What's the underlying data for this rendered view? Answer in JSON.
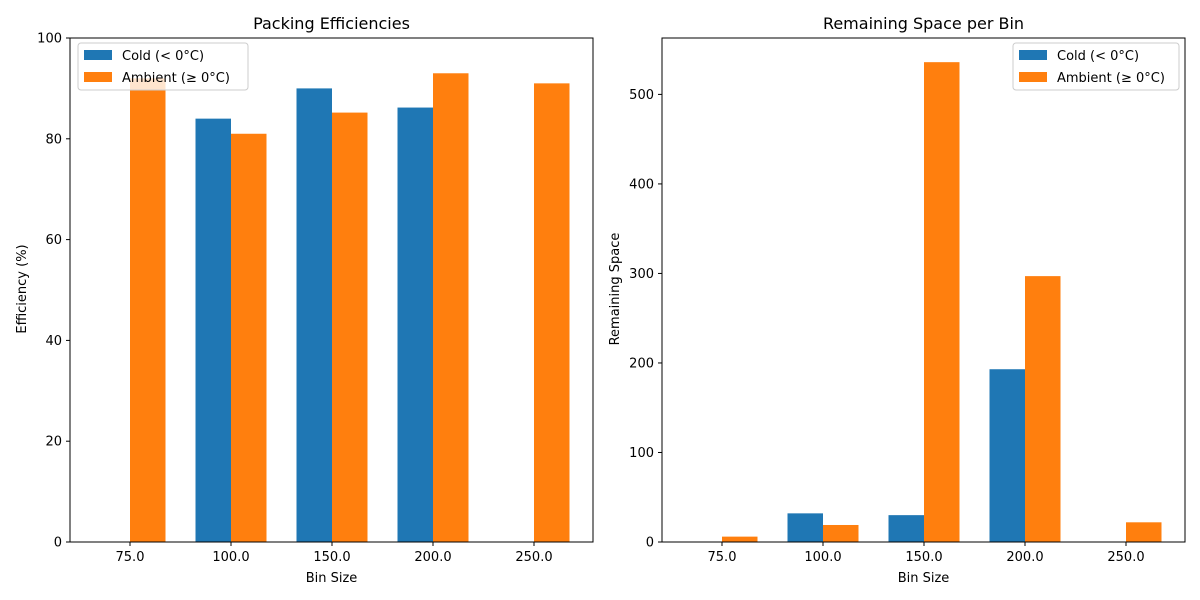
{
  "chart_data": [
    {
      "type": "bar",
      "title": "Packing Efficiencies",
      "xlabel": "Bin Size",
      "ylabel": "Efficiency (%)",
      "categories": [
        "75.0",
        "100.0",
        "150.0",
        "200.0",
        "250.0"
      ],
      "ylim": [
        0,
        100
      ],
      "yticks": [
        0,
        20,
        40,
        60,
        80,
        100
      ],
      "grid": false,
      "legend": "top-left",
      "series": [
        {
          "name": "Cold (< 0°C)",
          "color": "#1f77b4",
          "values": [
            null,
            84.0,
            90.0,
            86.2,
            null
          ]
        },
        {
          "name": "Ambient (≥ 0°C)",
          "color": "#ff7f0e",
          "values": [
            92.0,
            81.0,
            85.2,
            93.0,
            91.0
          ]
        }
      ]
    },
    {
      "type": "bar",
      "title": "Remaining Space per Bin",
      "xlabel": "Bin Size",
      "ylabel": "Remaining Space",
      "categories": [
        "75.0",
        "100.0",
        "150.0",
        "200.0",
        "250.0"
      ],
      "ylim": [
        0,
        563
      ],
      "yticks": [
        0,
        100,
        200,
        300,
        400,
        500
      ],
      "grid": false,
      "legend": "top-right",
      "series": [
        {
          "name": "Cold (< 0°C)",
          "color": "#1f77b4",
          "values": [
            null,
            32.0,
            30.0,
            193.0,
            null
          ]
        },
        {
          "name": "Ambient (≥ 0°C)",
          "color": "#ff7f0e",
          "values": [
            6.0,
            19.0,
            536.0,
            297.0,
            22.0
          ]
        }
      ]
    }
  ]
}
